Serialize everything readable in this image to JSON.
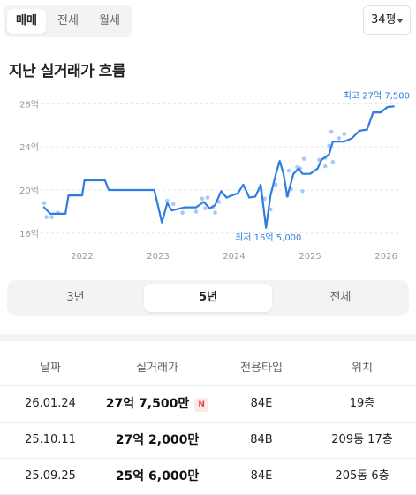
{
  "transaction_tabs": [
    {
      "label": "매매",
      "active": true
    },
    {
      "label": "전세",
      "active": false
    },
    {
      "label": "월세",
      "active": false
    }
  ],
  "size_select": {
    "value": "34평"
  },
  "section_title": "지난 실거래가 흐름",
  "chart_data": {
    "type": "line",
    "y_unit": "억",
    "y_ticks": [
      "28억",
      "24억",
      "20억",
      "16억"
    ],
    "y_tick_values": [
      28,
      24,
      20,
      16
    ],
    "x_ticks": [
      "2022",
      "2023",
      "2024",
      "2025",
      "2026"
    ],
    "x_tick_values": [
      2022,
      2023,
      2024,
      2025,
      2026
    ],
    "xlim": [
      2021.5,
      2026.15
    ],
    "ylim": [
      15.5,
      28.6
    ],
    "grid": "horizontal dashed",
    "line_color": "#2f7de1",
    "scatter_color": "#a9c8f3",
    "max_annotation": {
      "label": "최고 27억 7,500",
      "x": 2026.05,
      "y": 27.75
    },
    "min_annotation": {
      "label": "최저 16억 5,000",
      "x": 2024.45,
      "y": 16.5
    },
    "line": [
      [
        2021.5,
        18.4
      ],
      [
        2021.58,
        17.8
      ],
      [
        2021.78,
        17.8
      ],
      [
        2021.82,
        19.5
      ],
      [
        2021.95,
        19.5
      ],
      [
        2022.0,
        19.5
      ],
      [
        2022.03,
        20.9
      ],
      [
        2022.15,
        20.9
      ],
      [
        2022.3,
        20.9
      ],
      [
        2022.35,
        20.0
      ],
      [
        2022.5,
        20.0
      ],
      [
        2022.7,
        20.0
      ],
      [
        2022.95,
        20.0
      ],
      [
        2023.05,
        17.0
      ],
      [
        2023.12,
        18.8
      ],
      [
        2023.18,
        18.1
      ],
      [
        2023.35,
        18.4
      ],
      [
        2023.5,
        18.4
      ],
      [
        2023.6,
        18.9
      ],
      [
        2023.68,
        18.3
      ],
      [
        2023.75,
        18.6
      ],
      [
        2023.83,
        19.9
      ],
      [
        2023.9,
        19.3
      ],
      [
        2023.97,
        19.5
      ],
      [
        2024.05,
        19.7
      ],
      [
        2024.12,
        20.5
      ],
      [
        2024.2,
        19.3
      ],
      [
        2024.28,
        19.4
      ],
      [
        2024.35,
        20.5
      ],
      [
        2024.42,
        16.5
      ],
      [
        2024.48,
        19.5
      ],
      [
        2024.55,
        21.5
      ],
      [
        2024.6,
        22.7
      ],
      [
        2024.65,
        21.5
      ],
      [
        2024.7,
        19.4
      ],
      [
        2024.78,
        21.5
      ],
      [
        2024.85,
        22.0
      ],
      [
        2024.9,
        21.5
      ],
      [
        2025.0,
        21.5
      ],
      [
        2025.1,
        22.0
      ],
      [
        2025.15,
        22.8
      ],
      [
        2025.25,
        23.3
      ],
      [
        2025.3,
        24.5
      ],
      [
        2025.45,
        24.5
      ],
      [
        2025.55,
        24.8
      ],
      [
        2025.65,
        25.5
      ],
      [
        2025.75,
        25.6
      ],
      [
        2025.83,
        27.2
      ],
      [
        2025.93,
        27.2
      ],
      [
        2026.02,
        27.7
      ],
      [
        2026.1,
        27.75
      ]
    ],
    "scatter": [
      [
        2021.5,
        18.8
      ],
      [
        2021.53,
        17.5
      ],
      [
        2021.6,
        17.5
      ],
      [
        2021.68,
        17.9
      ],
      [
        2023.12,
        19.0
      ],
      [
        2023.2,
        18.7
      ],
      [
        2023.32,
        17.9
      ],
      [
        2023.5,
        18.0
      ],
      [
        2023.58,
        19.2
      ],
      [
        2023.62,
        18.3
      ],
      [
        2023.65,
        19.3
      ],
      [
        2023.72,
        18.4
      ],
      [
        2023.75,
        17.9
      ],
      [
        2023.8,
        18.9
      ],
      [
        2024.35,
        20.0
      ],
      [
        2024.4,
        19.2
      ],
      [
        2024.48,
        18.2
      ],
      [
        2024.55,
        20.5
      ],
      [
        2024.6,
        22.5
      ],
      [
        2024.7,
        19.5
      ],
      [
        2024.72,
        21.8
      ],
      [
        2024.75,
        20.1
      ],
      [
        2024.83,
        22.1
      ],
      [
        2024.87,
        22.0
      ],
      [
        2024.9,
        19.9
      ],
      [
        2024.92,
        22.9
      ],
      [
        2025.12,
        22.8
      ],
      [
        2025.2,
        23.0
      ],
      [
        2025.2,
        22.2
      ],
      [
        2025.25,
        24.1
      ],
      [
        2025.28,
        25.4
      ],
      [
        2025.3,
        22.6
      ],
      [
        2025.38,
        24.8
      ],
      [
        2025.45,
        25.2
      ]
    ]
  },
  "range_tabs": [
    {
      "label": "3년",
      "active": false
    },
    {
      "label": "5년",
      "active": true
    },
    {
      "label": "전체",
      "active": false
    }
  ],
  "table": {
    "headers": {
      "date": "날짜",
      "price": "실거래가",
      "type": "전용타입",
      "location": "위치"
    },
    "rows": [
      {
        "date": "26.01.24",
        "price": "27억 7,500만",
        "badge": "N",
        "type": "84E",
        "location": "19층"
      },
      {
        "date": "25.10.11",
        "price": "27억 2,000만",
        "type": "84B",
        "location": "209동 17층"
      },
      {
        "date": "25.09.25",
        "price": "25억 6,000만",
        "type": "84E",
        "location": "205동 6층"
      }
    ]
  }
}
